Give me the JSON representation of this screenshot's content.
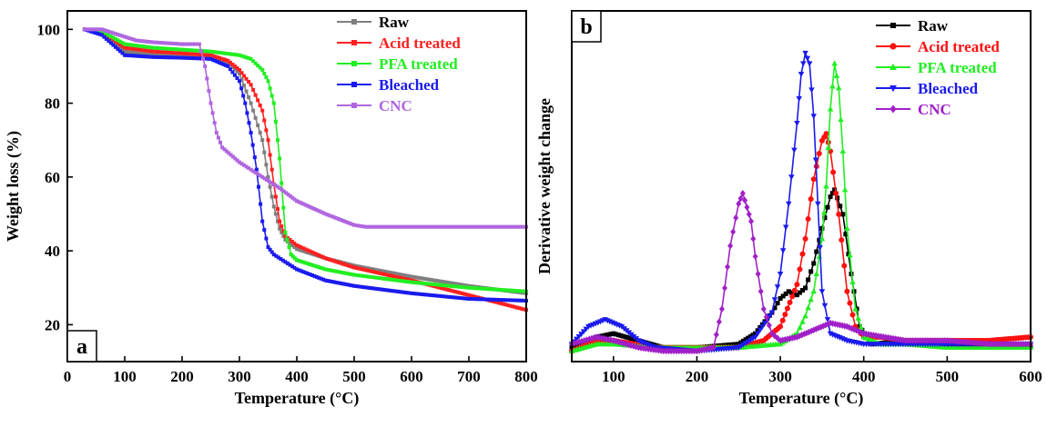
{
  "panel_a": {
    "letter": "a",
    "chart_data": {
      "type": "line",
      "xlabel": "Temperature (°C)",
      "ylabel": "Weight loss (%)",
      "xlim": [
        0,
        800
      ],
      "ylim": [
        10,
        105
      ],
      "xticks": [
        0,
        100,
        200,
        300,
        400,
        500,
        600,
        700,
        800
      ],
      "yticks": [
        20,
        40,
        60,
        80,
        100
      ],
      "legend_position": "top-right",
      "series": [
        {
          "name": "Raw",
          "color": "#7f7f7f",
          "marker": "square",
          "x": [
            30,
            60,
            100,
            150,
            200,
            250,
            280,
            300,
            320,
            340,
            350,
            360,
            370,
            380,
            400,
            450,
            500,
            600,
            700,
            800
          ],
          "y": [
            100,
            99,
            94,
            93,
            92.5,
            92,
            91,
            88,
            80,
            70,
            60,
            52,
            46,
            43,
            40.5,
            38,
            36,
            33,
            30.5,
            28.5
          ]
        },
        {
          "name": "Acid treated",
          "color": "#ff2020",
          "marker": "square",
          "x": [
            30,
            60,
            100,
            150,
            200,
            250,
            280,
            300,
            320,
            340,
            350,
            360,
            370,
            380,
            400,
            450,
            500,
            600,
            700,
            800
          ],
          "y": [
            100,
            99.5,
            95,
            94,
            93.5,
            93,
            91.5,
            89,
            85,
            78,
            70,
            58,
            48,
            44,
            41.5,
            38,
            35.5,
            32,
            28,
            24
          ]
        },
        {
          "name": "PFA treated",
          "color": "#22ee22",
          "marker": "square",
          "x": [
            30,
            60,
            100,
            150,
            200,
            250,
            300,
            320,
            340,
            350,
            360,
            370,
            380,
            390,
            400,
            450,
            500,
            600,
            700,
            800
          ],
          "y": [
            100,
            99.5,
            96,
            95,
            94.5,
            94,
            93,
            92,
            89,
            86,
            80,
            65,
            45,
            39,
            37.5,
            35,
            33.5,
            31.5,
            30,
            29
          ]
        },
        {
          "name": "Bleached",
          "color": "#1a1aee",
          "marker": "square",
          "x": [
            30,
            60,
            100,
            150,
            200,
            250,
            280,
            300,
            310,
            320,
            330,
            340,
            350,
            360,
            380,
            400,
            450,
            500,
            600,
            700,
            800
          ],
          "y": [
            100,
            98.5,
            93,
            92.5,
            92.3,
            92,
            90,
            86,
            80,
            72,
            62,
            48,
            41,
            39,
            37,
            35,
            32,
            30.5,
            28.5,
            27,
            26.5
          ]
        },
        {
          "name": "CNC",
          "color": "#b066e0",
          "marker": "square",
          "x": [
            30,
            60,
            80,
            100,
            120,
            150,
            200,
            230,
            240,
            250,
            260,
            270,
            300,
            340,
            370,
            400,
            450,
            500,
            520,
            600,
            700,
            800
          ],
          "y": [
            100,
            100,
            99,
            98,
            97,
            96.5,
            96,
            96,
            90,
            80,
            72,
            68,
            64,
            60,
            57,
            53.5,
            50,
            47,
            46.5,
            46.5,
            46.5,
            46.5
          ]
        }
      ]
    }
  },
  "panel_b": {
    "letter": "b",
    "chart_data": {
      "type": "line",
      "xlabel": "Temperature (°C)",
      "ylabel": "Derivative weight change",
      "xlim": [
        50,
        600
      ],
      "ylim": [
        0,
        1
      ],
      "xticks": [
        100,
        200,
        300,
        400,
        500,
        600
      ],
      "y_tick_labels_shown": false,
      "legend_position": "top-right",
      "series": [
        {
          "name": "Raw",
          "color": "#000000",
          "marker": "square",
          "x": [
            50,
            80,
            100,
            130,
            160,
            200,
            250,
            270,
            290,
            300,
            310,
            320,
            330,
            340,
            350,
            360,
            365,
            375,
            385,
            395,
            410,
            450,
            500,
            550,
            600
          ],
          "y": [
            0.04,
            0.07,
            0.08,
            0.06,
            0.04,
            0.04,
            0.05,
            0.08,
            0.14,
            0.18,
            0.2,
            0.19,
            0.21,
            0.28,
            0.38,
            0.47,
            0.49,
            0.42,
            0.25,
            0.1,
            0.05,
            0.06,
            0.05,
            0.05,
            0.04
          ]
        },
        {
          "name": "Acid treated",
          "color": "#ff1010",
          "marker": "circle",
          "x": [
            50,
            80,
            100,
            150,
            200,
            250,
            280,
            300,
            320,
            330,
            340,
            350,
            355,
            360,
            370,
            380,
            390,
            400,
            420,
            450,
            500,
            550,
            600
          ],
          "y": [
            0.03,
            0.06,
            0.06,
            0.04,
            0.04,
            0.04,
            0.06,
            0.1,
            0.22,
            0.35,
            0.52,
            0.63,
            0.65,
            0.6,
            0.42,
            0.2,
            0.1,
            0.07,
            0.07,
            0.06,
            0.06,
            0.06,
            0.07
          ]
        },
        {
          "name": "PFA treated",
          "color": "#22ee22",
          "marker": "triangle",
          "x": [
            50,
            80,
            100,
            150,
            200,
            250,
            300,
            320,
            330,
            340,
            350,
            355,
            360,
            365,
            370,
            375,
            380,
            390,
            400,
            420,
            450,
            500,
            550,
            600
          ],
          "y": [
            0.03,
            0.05,
            0.05,
            0.04,
            0.04,
            0.04,
            0.05,
            0.08,
            0.13,
            0.2,
            0.35,
            0.5,
            0.72,
            0.85,
            0.78,
            0.6,
            0.38,
            0.15,
            0.07,
            0.05,
            0.05,
            0.04,
            0.04,
            0.04
          ]
        },
        {
          "name": "Bleached",
          "color": "#1a1aee",
          "marker": "triangle-down",
          "x": [
            50,
            70,
            90,
            110,
            130,
            150,
            200,
            250,
            270,
            290,
            300,
            310,
            320,
            325,
            330,
            335,
            340,
            345,
            350,
            360,
            380,
            400,
            450,
            500,
            550,
            600
          ],
          "y": [
            0.05,
            0.1,
            0.12,
            0.1,
            0.06,
            0.04,
            0.03,
            0.04,
            0.07,
            0.14,
            0.25,
            0.45,
            0.68,
            0.82,
            0.88,
            0.85,
            0.7,
            0.45,
            0.2,
            0.08,
            0.06,
            0.05,
            0.05,
            0.05,
            0.05,
            0.05
          ]
        },
        {
          "name": "CNC",
          "color": "#a020c8",
          "marker": "diamond",
          "x": [
            50,
            80,
            100,
            130,
            160,
            200,
            220,
            230,
            240,
            250,
            255,
            260,
            265,
            270,
            280,
            290,
            300,
            320,
            340,
            360,
            380,
            400,
            450,
            500,
            550,
            600
          ],
          "y": [
            0.05,
            0.07,
            0.06,
            0.04,
            0.03,
            0.03,
            0.04,
            0.15,
            0.33,
            0.45,
            0.48,
            0.44,
            0.4,
            0.3,
            0.15,
            0.08,
            0.06,
            0.07,
            0.09,
            0.11,
            0.1,
            0.08,
            0.06,
            0.06,
            0.05,
            0.05
          ]
        }
      ]
    }
  }
}
